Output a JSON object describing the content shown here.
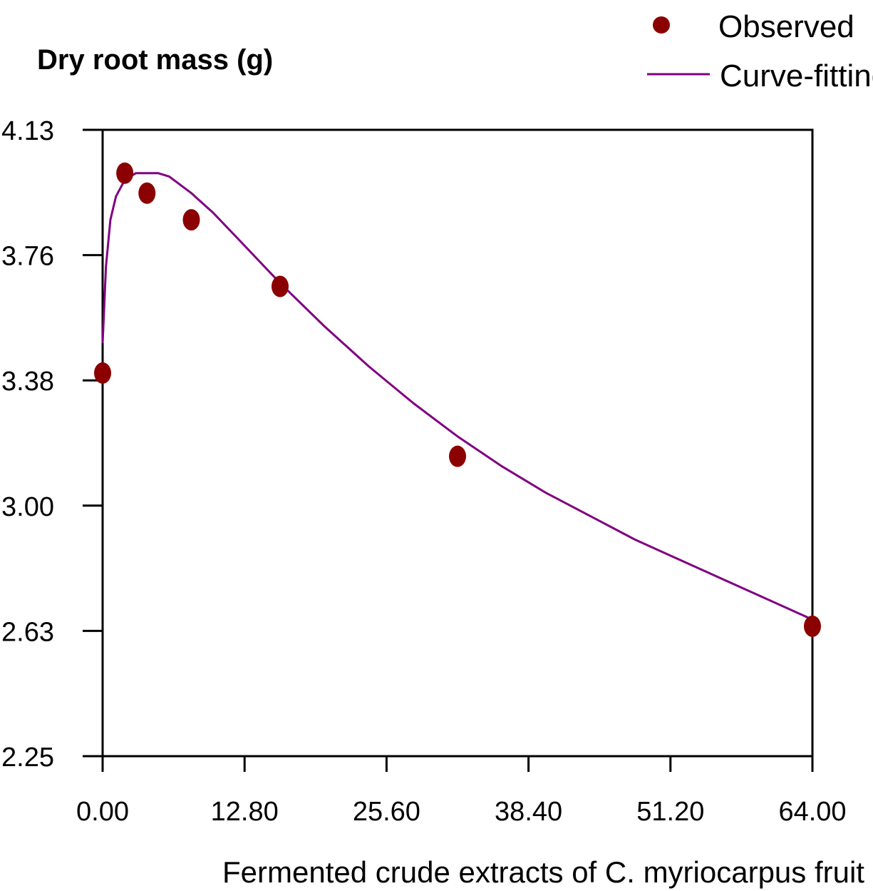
{
  "chart_data": {
    "type": "scatter",
    "title": "",
    "xlabel": "Fermented crude extracts of C. myriocarpus fruit (%)",
    "ylabel": "Dry root mass (g)",
    "xlim": [
      0,
      64
    ],
    "ylim": [
      2.25,
      4.13
    ],
    "x_ticks": [
      "0.00",
      "12.80",
      "25.60",
      "38.40",
      "51.20",
      "64.00"
    ],
    "y_ticks": [
      "2.25",
      "2.63",
      "3.00",
      "3.38",
      "3.76",
      "4.13"
    ],
    "grid": false,
    "legend_position": "top-right",
    "series": [
      {
        "name": "Observed",
        "kind": "scatter",
        "color": "#8b0000",
        "x": [
          0,
          2,
          4,
          8,
          16,
          32,
          64
        ],
        "y": [
          3.4,
          4.0,
          3.94,
          3.86,
          3.66,
          3.15,
          2.64
        ]
      },
      {
        "name": "Curve-fitting",
        "kind": "line",
        "color": "#800080",
        "x": [
          0,
          0.3,
          0.7,
          1.2,
          2,
          3,
          4,
          5,
          6,
          8,
          10,
          12,
          16,
          20,
          24,
          28,
          32,
          36,
          40,
          44,
          48,
          52,
          56,
          60,
          64
        ],
        "y": [
          3.49,
          3.72,
          3.86,
          3.93,
          3.98,
          4.0,
          4.0,
          4.0,
          3.99,
          3.94,
          3.88,
          3.81,
          3.67,
          3.54,
          3.42,
          3.31,
          3.21,
          3.12,
          3.04,
          2.97,
          2.9,
          2.84,
          2.78,
          2.72,
          2.66
        ]
      }
    ]
  }
}
